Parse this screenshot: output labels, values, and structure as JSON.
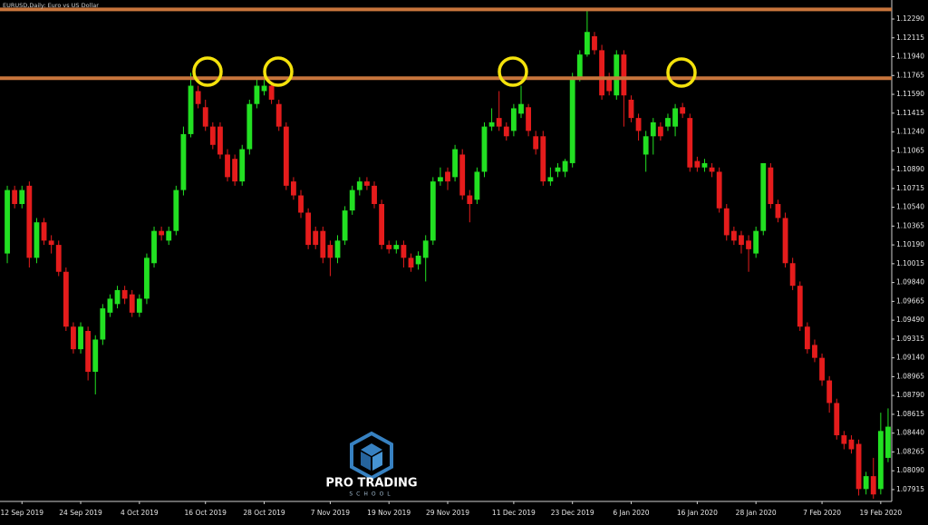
{
  "chart_data": {
    "type": "candlestick",
    "title": "EURUSD,Daily:  Euro vs US Dollar",
    "watermark": {
      "title": "PRO TRADING",
      "subtitle": "SCHOOL"
    },
    "up_color": "#22e022",
    "down_color": "#e51c1c",
    "hlines": [
      1.1238,
      1.1174
    ],
    "hline_color": "#c8753c",
    "ylim": [
      1.07805,
      1.12467
    ],
    "yticks": [
      {
        "value": 1.1229,
        "label": "1.12290"
      },
      1.12115,
      {
        "value": 1.1194,
        "label": "1.11940"
      },
      1.11765,
      {
        "value": 1.1159,
        "label": "1.11590"
      },
      1.11415,
      {
        "value": 1.1124,
        "label": "1.11240"
      },
      1.11065,
      {
        "value": 1.1089,
        "label": "1.10890"
      },
      1.10715,
      {
        "value": 1.1054,
        "label": "1.10540"
      },
      1.10365,
      {
        "value": 1.1019,
        "label": "1.10190"
      },
      1.10015,
      {
        "value": 1.0984,
        "label": "1.09840"
      },
      1.09665,
      {
        "value": 1.0949,
        "label": "1.09490"
      },
      1.09315,
      {
        "value": 1.0914,
        "label": "1.09140"
      },
      1.08965,
      {
        "value": 1.0879,
        "label": "1.08790"
      },
      1.08615,
      {
        "value": 1.0844,
        "label": "1.08440"
      },
      1.08265,
      {
        "value": 1.0809,
        "label": "1.08090"
      },
      1.07915
    ],
    "categories": [
      null,
      null,
      "12 Sep 2019",
      null,
      null,
      null,
      null,
      null,
      null,
      null,
      "24 Sep 2019",
      null,
      null,
      null,
      null,
      null,
      null,
      null,
      "4 Oct 2019",
      null,
      null,
      null,
      null,
      null,
      null,
      null,
      null,
      "16 Oct 2019",
      null,
      null,
      null,
      null,
      null,
      null,
      null,
      "28 Oct 2019",
      null,
      null,
      null,
      null,
      null,
      null,
      null,
      null,
      "7 Nov 2019",
      null,
      null,
      null,
      null,
      null,
      null,
      null,
      "19 Nov 2019",
      null,
      null,
      null,
      null,
      null,
      null,
      null,
      "29 Nov 2019",
      null,
      null,
      null,
      null,
      null,
      null,
      null,
      null,
      "11 Dec 2019",
      null,
      null,
      null,
      null,
      null,
      null,
      null,
      "23 Dec 2019",
      null,
      null,
      null,
      null,
      null,
      null,
      null,
      "6 Jan 2020",
      null,
      null,
      null,
      null,
      null,
      null,
      null,
      null,
      "16 Jan 2020",
      null,
      null,
      null,
      null,
      null,
      null,
      null,
      "28 Jan 2020",
      null,
      null,
      null,
      null,
      null,
      null,
      null,
      null,
      "7 Feb 2020",
      null,
      null,
      null,
      null,
      null,
      null,
      null,
      "19 Feb 2020",
      null
    ],
    "open": [
      1.1011,
      1.107,
      1.1057,
      1.1074,
      1.1007,
      1.104,
      1.1023,
      1.1019,
      1.0994,
      1.0943,
      1.0922,
      1.0939,
      1.0901,
      1.0931,
      1.0956,
      1.0964,
      1.0977,
      1.0973,
      1.0956,
      1.0969,
      1.1002,
      1.1032,
      1.1023,
      1.1032,
      1.107,
      1.1122,
      1.1162,
      1.1147,
      1.1129,
      1.1129,
      1.1103,
      1.1099,
      1.1078,
      1.1108,
      1.115,
      1.1162,
      1.1167,
      1.115,
      1.1129,
      1.1078,
      1.1065,
      1.1049,
      1.1032,
      1.1032,
      1.1019,
      1.1007,
      1.1023,
      1.1051,
      1.107,
      1.1078,
      1.1074,
      1.1057,
      1.1019,
      1.1015,
      1.1019,
      1.1007,
      1.1001,
      1.1007,
      1.1023,
      1.1078,
      1.1087,
      1.1082,
      1.1103,
      1.1065,
      1.1061,
      1.1087,
      1.1129,
      1.1137,
      1.1129,
      1.1125,
      1.1141,
      1.1147,
      1.112,
      1.112,
      1.1078,
      1.1087,
      1.1087,
      1.1095,
      1.1175,
      1.1196,
      1.1213,
      1.12,
      1.1175,
      1.1158,
      1.1196,
      1.1154,
      1.1137,
      1.1103,
      1.112,
      1.1129,
      1.1129,
      1.1129,
      1.1147,
      1.1137,
      1.1097,
      1.1091,
      1.1091,
      1.1087,
      1.1053,
      1.1032,
      1.1028,
      1.1023,
      1.1011,
      1.1032,
      1.1091,
      1.1057,
      1.1044,
      1.1002,
      1.0981,
      1.0943,
      1.0926,
      1.0914,
      1.0893,
      1.0872,
      1.0842,
      1.0838,
      1.0834,
      1.0792,
      1.0804,
      1.0792,
      1.0821
    ],
    "high": [
      1.1074,
      1.1074,
      1.1074,
      1.1078,
      1.1044,
      1.1044,
      1.1028,
      1.1023,
      1.0998,
      1.0947,
      1.0947,
      1.0943,
      1.0935,
      1.0964,
      1.0973,
      1.0981,
      1.0981,
      1.0977,
      1.0973,
      1.1011,
      1.1036,
      1.1036,
      1.1036,
      1.1074,
      1.1129,
      1.1179,
      1.1167,
      1.1154,
      1.1133,
      1.1133,
      1.1108,
      1.1103,
      1.1112,
      1.1154,
      1.1175,
      1.1179,
      1.1171,
      1.1154,
      1.1133,
      1.1082,
      1.107,
      1.1053,
      1.1036,
      1.1036,
      1.1023,
      1.1028,
      1.1055,
      1.1074,
      1.1082,
      1.1082,
      1.1078,
      1.1061,
      1.1023,
      1.1023,
      1.1023,
      1.1011,
      1.1013,
      1.1028,
      1.1082,
      1.1091,
      1.1091,
      1.1112,
      1.1108,
      1.107,
      1.1091,
      1.1133,
      1.1146,
      1.1162,
      1.1133,
      1.115,
      1.1167,
      1.115,
      1.1125,
      1.1125,
      1.1091,
      1.1095,
      1.1099,
      1.1179,
      1.12,
      1.1237,
      1.1217,
      1.1205,
      1.1179,
      1.12,
      1.12,
      1.1158,
      1.1141,
      1.1125,
      1.1137,
      1.1133,
      1.1141,
      1.115,
      1.1151,
      1.1141,
      1.1101,
      1.1099,
      1.1095,
      1.1091,
      1.1057,
      1.1036,
      1.1032,
      1.1028,
      1.1036,
      1.1095,
      1.1095,
      1.1061,
      1.1049,
      1.1007,
      1.0985,
      1.0947,
      1.0931,
      1.0918,
      1.0897,
      1.0876,
      1.0846,
      1.0842,
      1.0838,
      1.0808,
      1.0821,
      1.0863,
      1.0867
    ],
    "low": [
      1.1002,
      1.1053,
      1.1053,
      1.0998,
      1.1002,
      1.1019,
      1.1011,
      1.099,
      1.0939,
      1.0918,
      1.0918,
      1.0893,
      1.088,
      1.0926,
      1.0952,
      1.096,
      1.0964,
      1.0952,
      1.0952,
      1.0964,
      1.0998,
      1.1023,
      1.1019,
      1.1028,
      1.1065,
      1.1119,
      1.1146,
      1.1125,
      1.1108,
      1.1099,
      1.1078,
      1.1074,
      1.1074,
      1.1103,
      1.1146,
      1.1158,
      1.115,
      1.1125,
      1.107,
      1.1061,
      1.1044,
      1.1015,
      1.1015,
      1.1002,
      1.099,
      1.1002,
      1.1019,
      1.1047,
      1.1065,
      1.107,
      1.1053,
      1.1015,
      1.1011,
      1.1011,
      1.0998,
      1.0994,
      1.0996,
      1.0985,
      1.1019,
      1.1074,
      1.107,
      1.1078,
      1.1061,
      1.104,
      1.1057,
      1.1082,
      1.1125,
      1.1125,
      1.1116,
      1.112,
      1.1137,
      1.112,
      1.1103,
      1.1074,
      1.1074,
      1.1082,
      1.1082,
      1.1091,
      1.1171,
      1.1194,
      1.1196,
      1.1154,
      1.1158,
      1.1154,
      1.1129,
      1.1133,
      1.1116,
      1.1087,
      1.1103,
      1.1116,
      1.1125,
      1.112,
      1.1137,
      1.1087,
      1.1087,
      1.1087,
      1.1082,
      1.1049,
      1.1023,
      1.1019,
      1.1011,
      1.0994,
      1.1007,
      1.1028,
      1.1053,
      1.104,
      1.0998,
      1.0977,
      1.0939,
      1.0918,
      1.091,
      1.0888,
      1.0863,
      1.0838,
      1.0829,
      1.0825,
      1.0786,
      1.0787,
      1.0783,
      1.0787,
      1.0817
    ],
    "close": [
      1.107,
      1.1057,
      1.107,
      1.1007,
      1.104,
      1.1023,
      1.1019,
      1.0994,
      1.0943,
      1.0922,
      1.0943,
      1.0901,
      1.0931,
      1.096,
      1.0969,
      1.0977,
      1.0969,
      1.0956,
      1.0969,
      1.1007,
      1.1032,
      1.1028,
      1.1032,
      1.107,
      1.1122,
      1.1167,
      1.115,
      1.1129,
      1.1112,
      1.1103,
      1.1082,
      1.1078,
      1.1108,
      1.115,
      1.1167,
      1.1167,
      1.1154,
      1.1129,
      1.1074,
      1.1065,
      1.1049,
      1.1019,
      1.1019,
      1.1007,
      1.1007,
      1.1023,
      1.1051,
      1.107,
      1.1078,
      1.1074,
      1.1057,
      1.1019,
      1.1015,
      1.1019,
      1.1007,
      1.0998,
      1.1009,
      1.1023,
      1.1078,
      1.1082,
      1.1078,
      1.1108,
      1.1065,
      1.1057,
      1.1087,
      1.1129,
      1.1133,
      1.1129,
      1.112,
      1.1146,
      1.115,
      1.1125,
      1.1108,
      1.1078,
      1.1082,
      1.1091,
      1.1097,
      1.1175,
      1.1196,
      1.1217,
      1.12,
      1.1158,
      1.1162,
      1.1196,
      1.1158,
      1.1137,
      1.1125,
      1.112,
      1.1133,
      1.112,
      1.1137,
      1.1146,
      1.1141,
      1.1091,
      1.1091,
      1.1095,
      1.1087,
      1.1053,
      1.1028,
      1.1023,
      1.1019,
      1.1015,
      1.1032,
      1.1095,
      1.1057,
      1.1044,
      1.1002,
      1.0981,
      1.0943,
      1.0922,
      1.0914,
      1.0893,
      1.0872,
      1.0842,
      1.0834,
      1.0829,
      1.0792,
      1.0804,
      1.0787,
      1.0846,
      1.085
    ]
  }
}
